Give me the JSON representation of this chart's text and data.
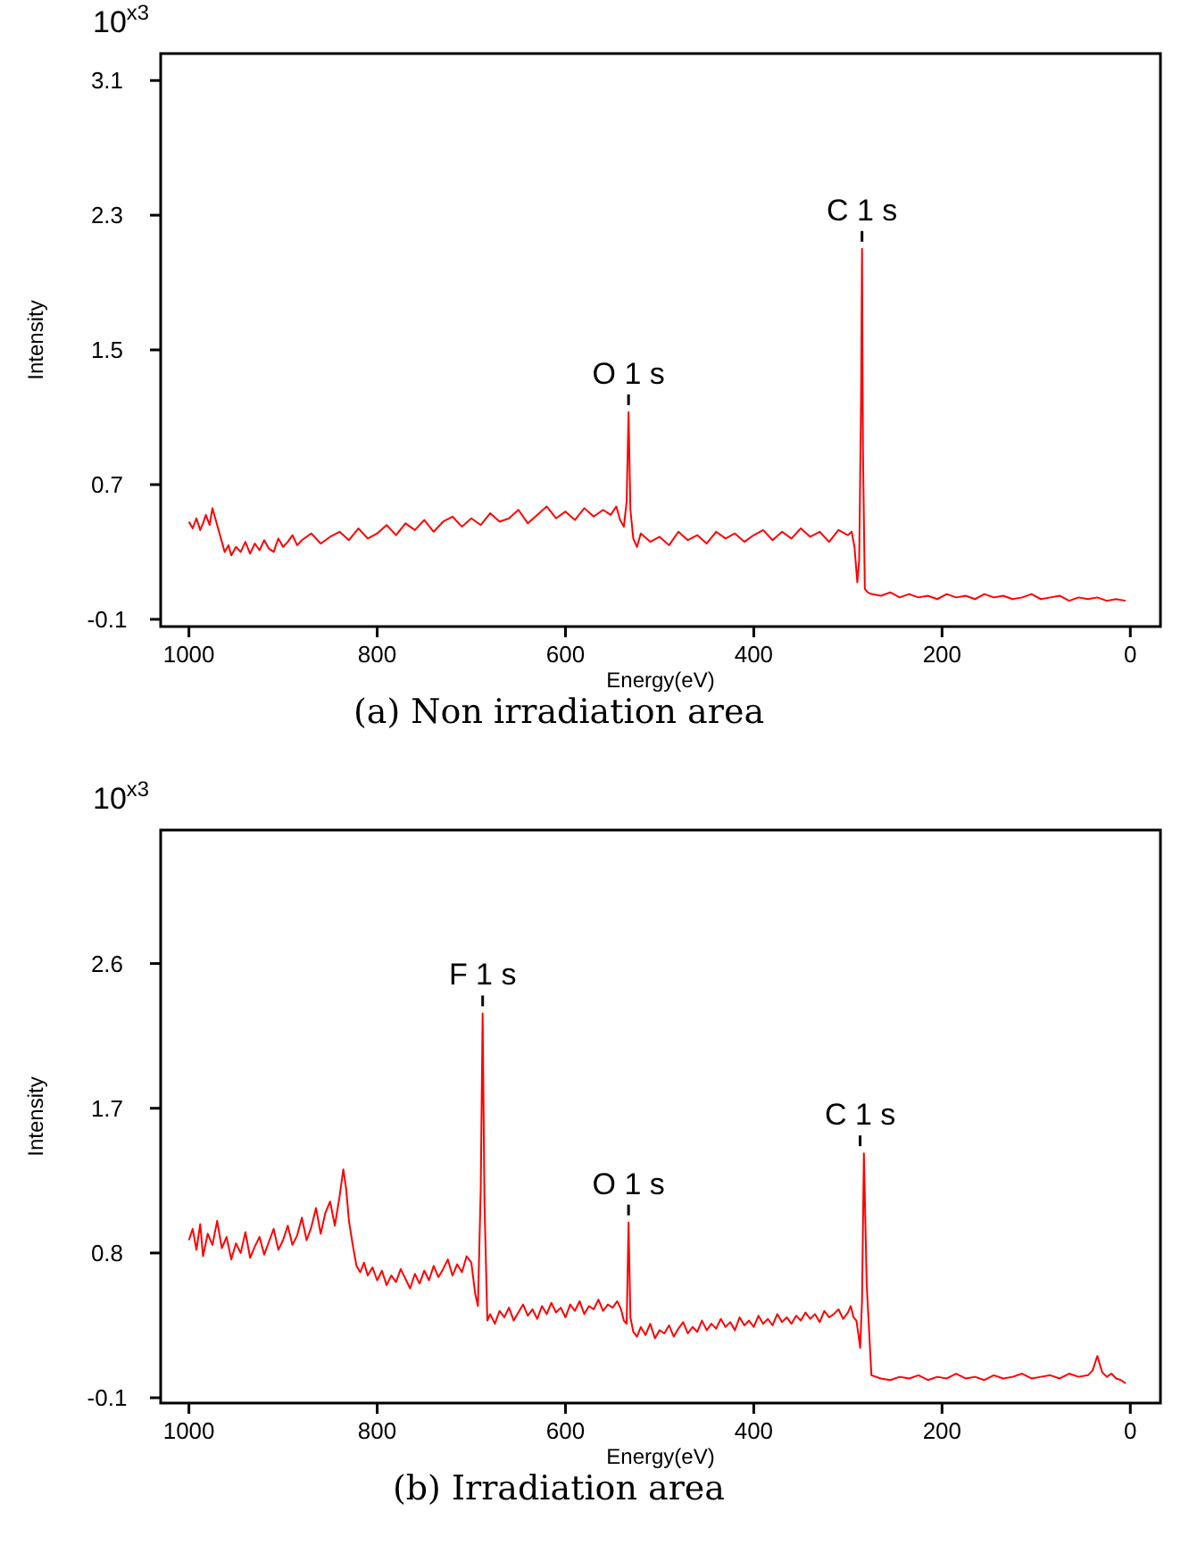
{
  "chart_data": [
    {
      "type": "line",
      "title": "(a) Non irradiation area",
      "xlabel": "Energy(eV)",
      "ylabel": "Intensity",
      "xlim": [
        1030,
        -32
      ],
      "xticks": [
        1000,
        800,
        600,
        400,
        200,
        0
      ],
      "ylim": [
        -0.143,
        3.26
      ],
      "yticks": [
        -0.1,
        0.7,
        1.5,
        2.3,
        3.1
      ],
      "annotations": [
        "10$^{x3}$",
        {
          "text": "O 1 s",
          "x": 533,
          "y": 1.13
        },
        {
          "text": "C 1 s",
          "x": 285,
          "y": 2.1
        }
      ],
      "series": [
        {
          "color": "#ff0000",
          "x": [
            1000,
            996,
            992,
            988,
            985,
            982,
            978,
            975,
            972,
            968,
            965,
            962,
            958,
            955,
            950,
            945,
            940,
            935,
            930,
            925,
            920,
            915,
            910,
            905,
            900,
            895,
            890,
            885,
            880,
            870,
            860,
            850,
            840,
            830,
            820,
            810,
            800,
            790,
            780,
            770,
            760,
            750,
            740,
            730,
            720,
            710,
            700,
            690,
            680,
            670,
            660,
            650,
            640,
            630,
            620,
            610,
            600,
            590,
            580,
            570,
            560,
            552,
            546,
            542,
            538,
            535,
            533,
            531,
            528,
            524,
            520,
            510,
            500,
            490,
            480,
            470,
            460,
            450,
            440,
            430,
            420,
            410,
            400,
            390,
            380,
            370,
            360,
            350,
            340,
            330,
            320,
            310,
            300,
            296,
            293,
            290,
            288,
            286,
            285,
            284,
            282,
            279,
            275,
            265,
            255,
            245,
            235,
            225,
            215,
            205,
            195,
            185,
            175,
            165,
            155,
            145,
            135,
            125,
            115,
            105,
            95,
            85,
            75,
            65,
            55,
            45,
            35,
            25,
            15,
            5
          ],
          "values": [
            0.48,
            0.44,
            0.5,
            0.43,
            0.47,
            0.52,
            0.46,
            0.56,
            0.5,
            0.42,
            0.36,
            0.3,
            0.34,
            0.28,
            0.33,
            0.3,
            0.36,
            0.29,
            0.35,
            0.31,
            0.37,
            0.32,
            0.3,
            0.38,
            0.33,
            0.36,
            0.4,
            0.34,
            0.37,
            0.41,
            0.35,
            0.39,
            0.42,
            0.37,
            0.44,
            0.38,
            0.41,
            0.46,
            0.4,
            0.47,
            0.43,
            0.49,
            0.42,
            0.48,
            0.51,
            0.45,
            0.5,
            0.46,
            0.53,
            0.48,
            0.5,
            0.55,
            0.47,
            0.52,
            0.57,
            0.5,
            0.54,
            0.49,
            0.56,
            0.51,
            0.55,
            0.52,
            0.57,
            0.49,
            0.45,
            0.6,
            1.13,
            0.55,
            0.38,
            0.33,
            0.41,
            0.36,
            0.39,
            0.34,
            0.42,
            0.37,
            0.4,
            0.35,
            0.42,
            0.38,
            0.41,
            0.36,
            0.4,
            0.43,
            0.37,
            0.42,
            0.38,
            0.44,
            0.39,
            0.42,
            0.36,
            0.43,
            0.4,
            0.42,
            0.33,
            0.12,
            0.25,
            1.2,
            2.1,
            0.9,
            0.08,
            0.06,
            0.05,
            0.04,
            0.06,
            0.03,
            0.05,
            0.03,
            0.04,
            0.02,
            0.05,
            0.03,
            0.04,
            0.02,
            0.05,
            0.03,
            0.04,
            0.02,
            0.03,
            0.05,
            0.02,
            0.03,
            0.04,
            0.01,
            0.03,
            0.02,
            0.03,
            0.01,
            0.02,
            0.01
          ]
        }
      ]
    },
    {
      "type": "line",
      "title": "(b) Irradiation area",
      "xlabel": "Energy(eV)",
      "ylabel": "Intensity",
      "xlim": [
        1030,
        -32
      ],
      "xticks": [
        1000,
        800,
        600,
        400,
        200,
        0
      ],
      "ylim": [
        -0.133,
        3.43
      ],
      "yticks": [
        -0.1,
        0.8,
        1.7,
        2.6
      ],
      "annotations": [
        "10$^{x3}$",
        {
          "text": "F 1 s",
          "x": 688,
          "y": 2.29
        },
        {
          "text": "O 1 s",
          "x": 533,
          "y": 0.99
        },
        {
          "text": "C 1 s",
          "x": 287,
          "y": 1.42
        }
      ],
      "series": [
        {
          "color": "#ff0000",
          "x": [
            1000,
            996,
            992,
            988,
            985,
            980,
            975,
            970,
            965,
            960,
            955,
            950,
            945,
            940,
            935,
            930,
            925,
            920,
            915,
            910,
            905,
            900,
            895,
            890,
            885,
            880,
            875,
            870,
            865,
            860,
            855,
            850,
            845,
            840,
            836,
            833,
            830,
            826,
            822,
            818,
            814,
            810,
            805,
            800,
            795,
            790,
            785,
            780,
            775,
            770,
            765,
            760,
            755,
            750,
            745,
            740,
            735,
            730,
            725,
            720,
            715,
            710,
            705,
            700,
            696,
            693,
            690,
            688,
            686,
            683,
            680,
            675,
            670,
            665,
            660,
            655,
            650,
            645,
            640,
            635,
            630,
            625,
            620,
            615,
            610,
            605,
            600,
            595,
            590,
            585,
            580,
            575,
            570,
            565,
            560,
            555,
            550,
            545,
            541,
            538,
            535,
            533,
            531,
            528,
            524,
            520,
            515,
            510,
            505,
            500,
            495,
            490,
            485,
            480,
            475,
            470,
            465,
            460,
            455,
            450,
            445,
            440,
            435,
            430,
            425,
            420,
            415,
            410,
            405,
            400,
            395,
            390,
            385,
            380,
            375,
            370,
            365,
            360,
            355,
            350,
            345,
            340,
            335,
            330,
            325,
            320,
            315,
            310,
            305,
            300,
            297,
            294,
            291,
            289,
            287,
            285,
            283,
            280,
            275,
            265,
            255,
            245,
            235,
            225,
            215,
            205,
            195,
            185,
            175,
            165,
            155,
            145,
            135,
            125,
            115,
            105,
            95,
            85,
            75,
            65,
            55,
            45,
            40,
            35,
            30,
            25,
            20,
            15,
            10,
            5
          ],
          "values": [
            0.88,
            0.95,
            0.82,
            0.98,
            0.78,
            0.92,
            0.85,
            1.0,
            0.83,
            0.9,
            0.76,
            0.86,
            0.8,
            0.93,
            0.77,
            0.84,
            0.9,
            0.79,
            0.87,
            0.95,
            0.82,
            0.88,
            0.97,
            0.85,
            0.91,
            1.02,
            0.88,
            0.96,
            1.08,
            0.92,
            1.05,
            1.12,
            0.97,
            1.15,
            1.32,
            1.2,
            1.0,
            0.85,
            0.72,
            0.68,
            0.74,
            0.66,
            0.71,
            0.63,
            0.69,
            0.6,
            0.66,
            0.62,
            0.7,
            0.64,
            0.58,
            0.67,
            0.61,
            0.69,
            0.63,
            0.72,
            0.65,
            0.7,
            0.76,
            0.66,
            0.73,
            0.68,
            0.78,
            0.74,
            0.55,
            0.47,
            1.2,
            2.29,
            1.1,
            0.38,
            0.42,
            0.36,
            0.44,
            0.4,
            0.46,
            0.38,
            0.43,
            0.48,
            0.41,
            0.45,
            0.39,
            0.47,
            0.42,
            0.49,
            0.43,
            0.46,
            0.4,
            0.48,
            0.44,
            0.5,
            0.42,
            0.47,
            0.45,
            0.51,
            0.44,
            0.48,
            0.46,
            0.5,
            0.45,
            0.38,
            0.36,
            0.99,
            0.4,
            0.31,
            0.28,
            0.34,
            0.29,
            0.36,
            0.27,
            0.32,
            0.3,
            0.35,
            0.28,
            0.33,
            0.37,
            0.3,
            0.34,
            0.31,
            0.38,
            0.32,
            0.36,
            0.33,
            0.39,
            0.34,
            0.37,
            0.32,
            0.4,
            0.35,
            0.38,
            0.34,
            0.41,
            0.36,
            0.39,
            0.35,
            0.42,
            0.37,
            0.4,
            0.36,
            0.41,
            0.38,
            0.43,
            0.39,
            0.42,
            0.37,
            0.44,
            0.4,
            0.42,
            0.45,
            0.39,
            0.43,
            0.47,
            0.4,
            0.38,
            0.3,
            0.21,
            0.5,
            1.42,
            0.6,
            0.04,
            0.02,
            0.01,
            0.03,
            0.02,
            0.04,
            0.01,
            0.03,
            0.02,
            0.05,
            0.02,
            0.03,
            0.01,
            0.04,
            0.02,
            0.03,
            0.05,
            0.02,
            0.03,
            0.04,
            0.02,
            0.05,
            0.03,
            0.04,
            0.07,
            0.16,
            0.06,
            0.03,
            0.05,
            0.02,
            0.01,
            -0.01
          ]
        }
      ]
    }
  ]
}
